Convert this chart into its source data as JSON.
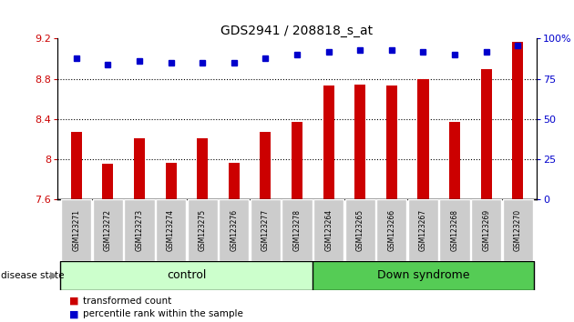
{
  "title": "GDS2941 / 208818_s_at",
  "categories": [
    "GSM123271",
    "GSM123272",
    "GSM123273",
    "GSM123274",
    "GSM123275",
    "GSM123276",
    "GSM123277",
    "GSM123278",
    "GSM123264",
    "GSM123265",
    "GSM123266",
    "GSM123267",
    "GSM123268",
    "GSM123269",
    "GSM123270"
  ],
  "bar_values": [
    8.27,
    7.96,
    8.21,
    7.97,
    8.21,
    7.97,
    8.27,
    8.37,
    8.73,
    8.74,
    8.73,
    8.8,
    8.37,
    8.9,
    9.17
  ],
  "dot_values": [
    88,
    84,
    86,
    85,
    85,
    85,
    88,
    90,
    92,
    93,
    93,
    92,
    90,
    92,
    96
  ],
  "ylim_left": [
    7.6,
    9.2
  ],
  "ylim_right": [
    0,
    100
  ],
  "yticks_left": [
    7.6,
    8.0,
    8.4,
    8.8,
    9.2
  ],
  "ytick_labels_left": [
    "7.6",
    "8",
    "8.4",
    "8.8",
    "9.2"
  ],
  "yticks_right": [
    0,
    25,
    50,
    75,
    100
  ],
  "ytick_labels_right": [
    "0",
    "25",
    "50",
    "75",
    "100%"
  ],
  "bar_color": "#cc0000",
  "dot_color": "#0000cc",
  "control_count": 8,
  "down_syndrome_count": 7,
  "control_label": "control",
  "down_syndrome_label": "Down syndrome",
  "disease_state_label": "disease state",
  "legend_bar_label": "transformed count",
  "legend_dot_label": "percentile rank within the sample",
  "control_color": "#ccffcc",
  "down_syndrome_color": "#55cc55",
  "tick_label_bg": "#cccccc",
  "gridline_ticks": [
    8.0,
    8.4,
    8.8
  ],
  "bar_width": 0.35
}
